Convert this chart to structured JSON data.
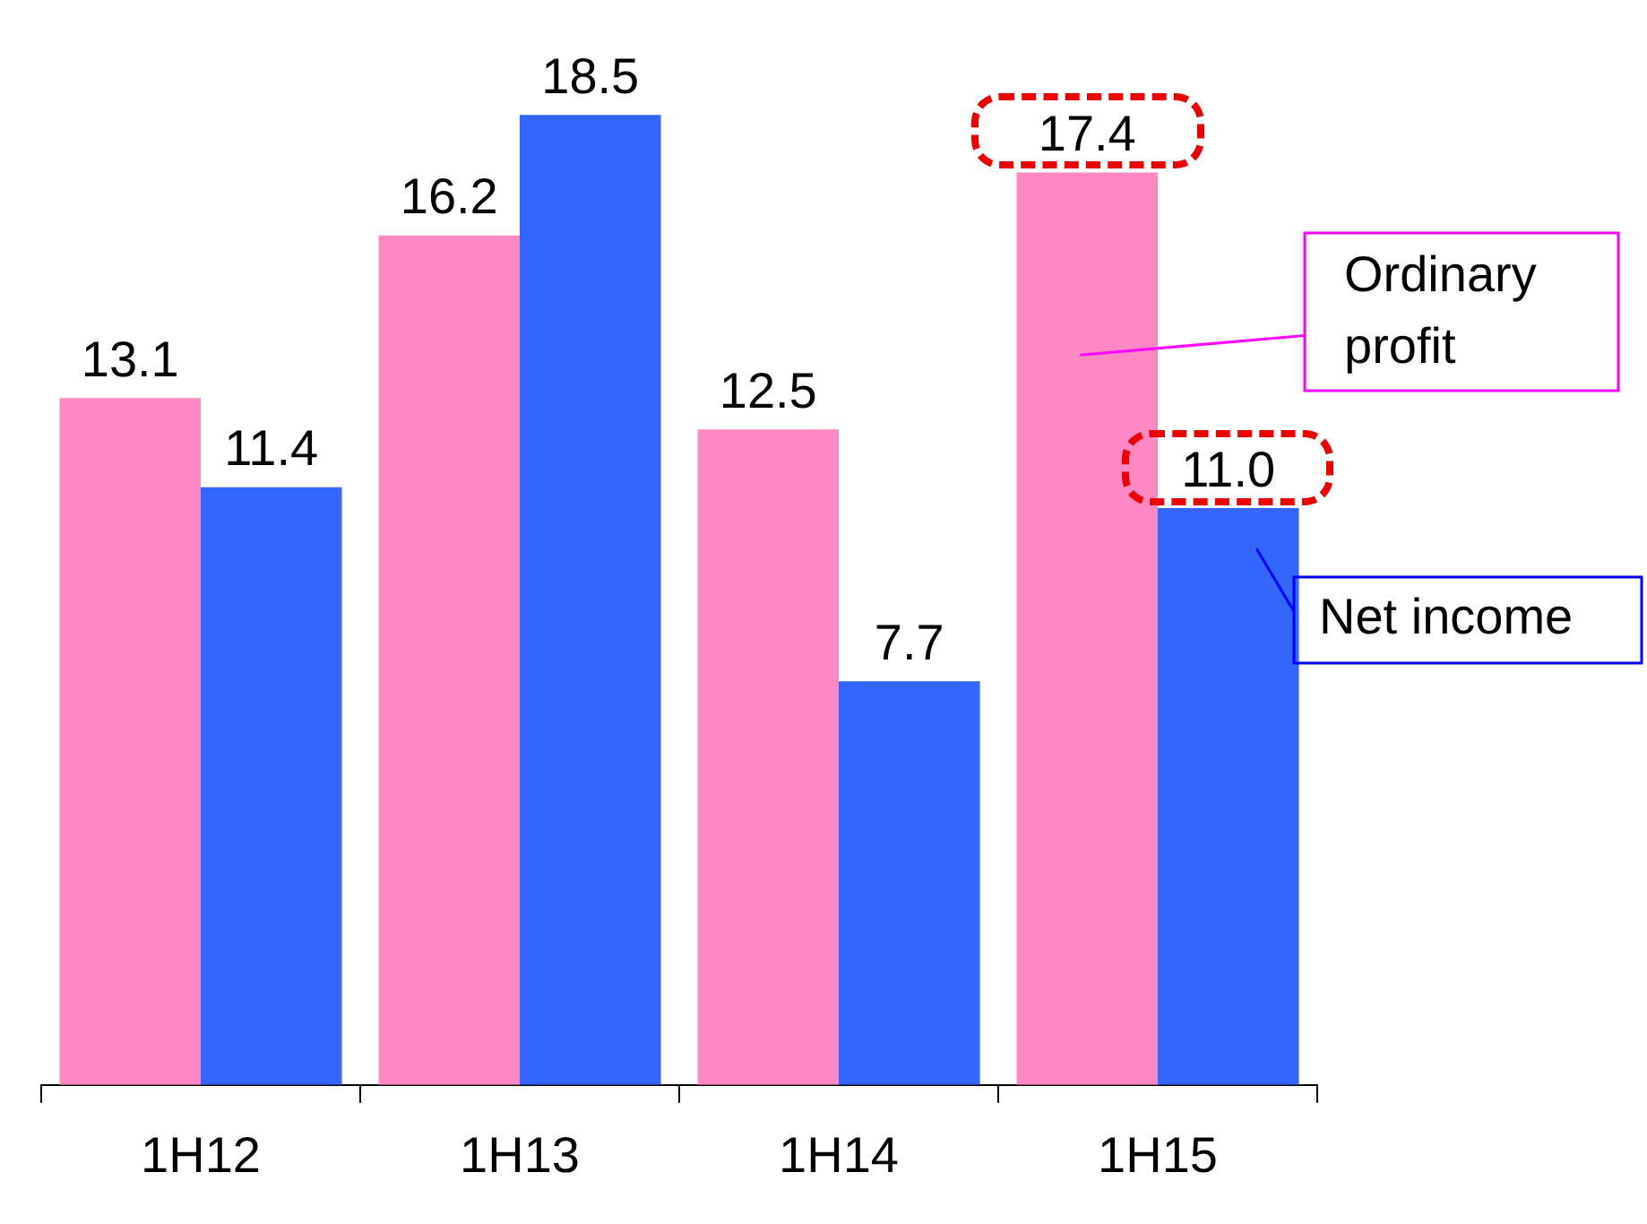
{
  "chart_data": {
    "type": "bar",
    "categories": [
      "1H12",
      "1H13",
      "1H14",
      "1H15"
    ],
    "series": [
      {
        "name": "Ordinary profit",
        "color": "#ff88c4",
        "values": [
          13.1,
          16.2,
          12.5,
          17.4
        ],
        "value_labels": [
          "13.1",
          "16.2",
          "12.5",
          "17.4"
        ]
      },
      {
        "name": "Net income",
        "color": "#3366ff",
        "values": [
          11.4,
          18.5,
          7.7,
          11.0
        ],
        "value_labels": [
          "11.4",
          "18.5",
          "7.7",
          "11.0"
        ]
      }
    ],
    "relative": false,
    "legend": false,
    "grid": false
  }
}
